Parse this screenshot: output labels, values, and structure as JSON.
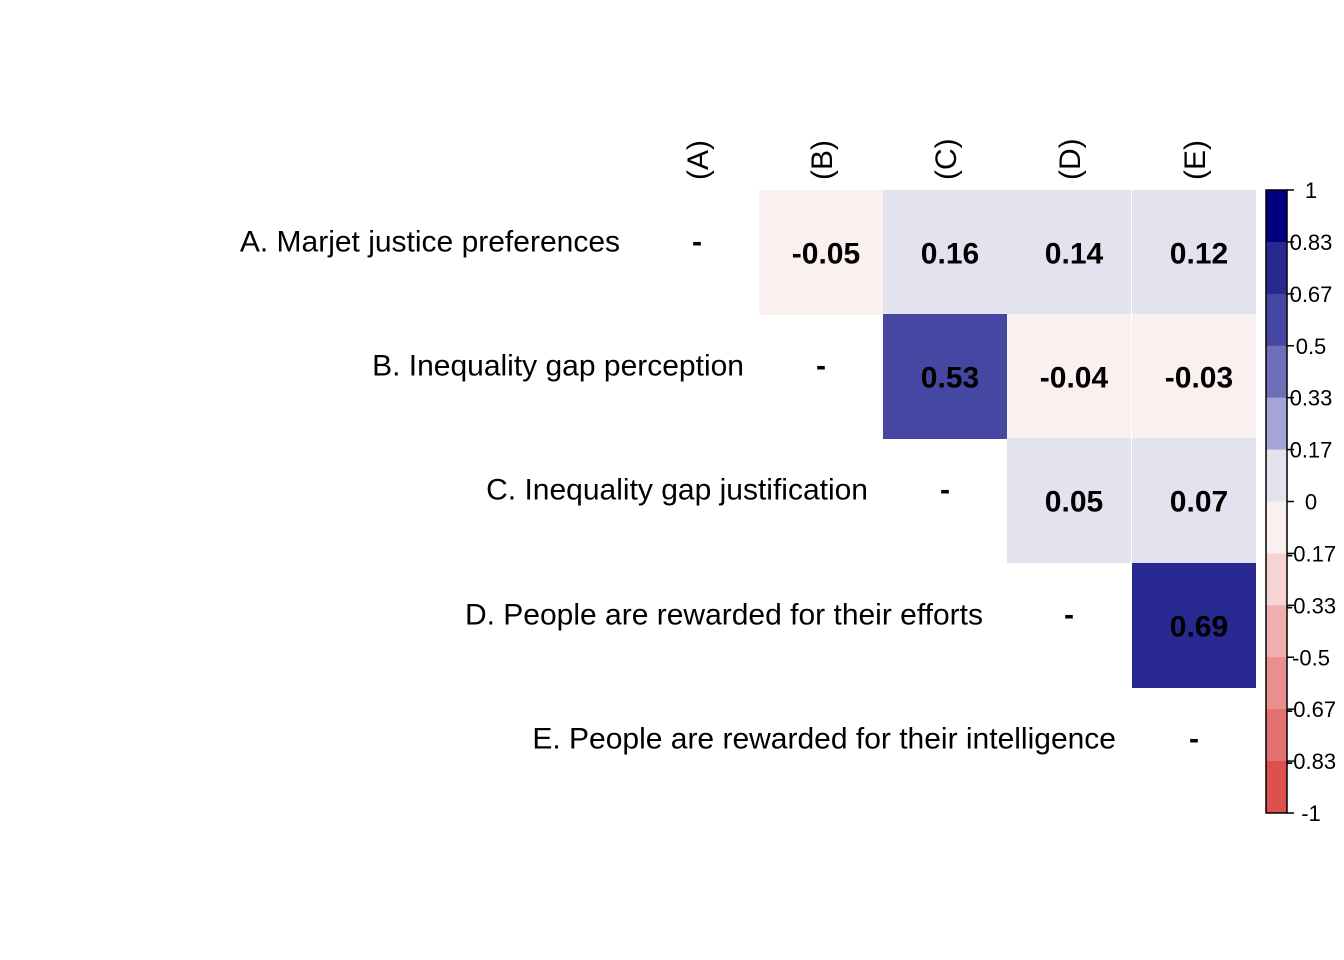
{
  "chart_data": {
    "type": "heatmap",
    "subtype": "correlation-upper-triangle",
    "row_labels": [
      "A. Marjet justice preferences",
      "B. Inequality gap perception",
      "C. Inequality gap justification",
      "D. People are rewarded for their efforts",
      "E. People are rewarded for their intelligence"
    ],
    "col_labels": [
      "(A)",
      "(B)",
      "(C)",
      "(D)",
      "(E)"
    ],
    "diagonal_text": "-",
    "cells": [
      {
        "row": 0,
        "col": 1,
        "value": -0.05,
        "label": "-0.05"
      },
      {
        "row": 0,
        "col": 2,
        "value": 0.16,
        "label": "0.16"
      },
      {
        "row": 0,
        "col": 3,
        "value": 0.14,
        "label": "0.14"
      },
      {
        "row": 0,
        "col": 4,
        "value": 0.12,
        "label": "0.12"
      },
      {
        "row": 1,
        "col": 2,
        "value": 0.53,
        "label": "0.53"
      },
      {
        "row": 1,
        "col": 3,
        "value": -0.04,
        "label": "-0.04"
      },
      {
        "row": 1,
        "col": 4,
        "value": -0.03,
        "label": "-0.03"
      },
      {
        "row": 2,
        "col": 3,
        "value": 0.05,
        "label": "0.05"
      },
      {
        "row": 2,
        "col": 4,
        "value": 0.07,
        "label": "0.07"
      },
      {
        "row": 3,
        "col": 4,
        "value": 0.69,
        "label": "0.69"
      }
    ],
    "colorbar": {
      "range": [
        -1,
        1
      ],
      "ticks": [
        "1",
        "0.83",
        "0.67",
        "0.5",
        "0.33",
        "0.17",
        "0",
        "-0.17",
        "-0.33",
        "-0.5",
        "-0.67",
        "-0.83",
        "-1"
      ],
      "bins_top_to_bottom": [
        "#000080",
        "#282891",
        "#4646a3",
        "#6e6eb9",
        "#a4a4d6",
        "#e3e3f0",
        "#fbf0f0",
        "#f6d4d4",
        "#efafaf",
        "#e89090",
        "#e37171",
        "#dc5050"
      ]
    },
    "title": "",
    "xlabel": "",
    "ylabel": ""
  }
}
